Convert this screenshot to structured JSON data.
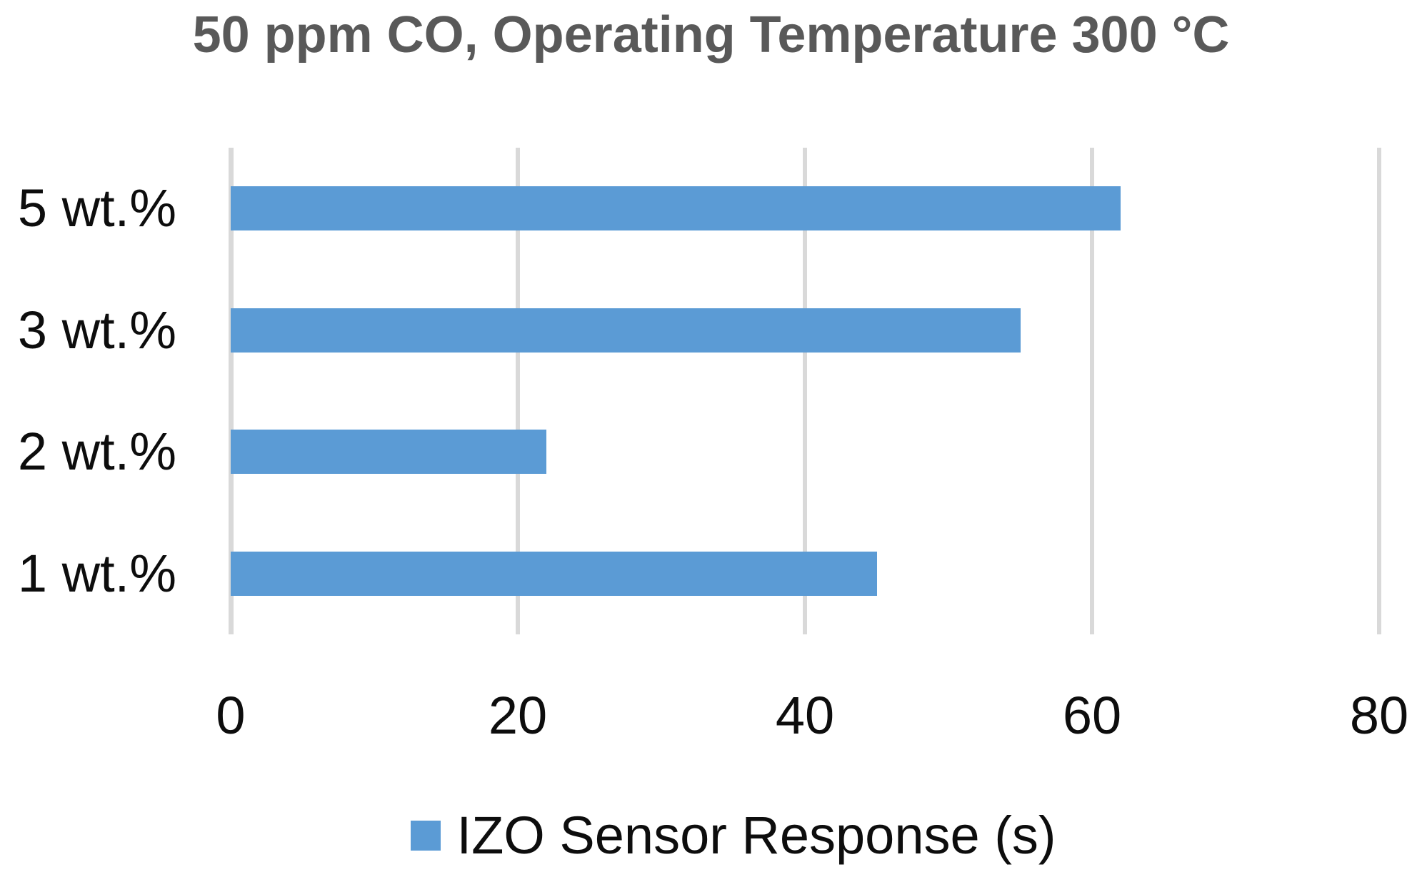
{
  "title": "50 ppm CO, Operating Temperature 300 °C",
  "legend": {
    "label": "IZO Sensor Response (s)",
    "marker_color": "#5b9bd5"
  },
  "colors": {
    "bar": "#5b9bd5",
    "gridline": "#d9d9d9",
    "axis_line": "#d9d9d9",
    "title_text": "#595959",
    "label_text": "#0d0d0d",
    "background": "#ffffff"
  },
  "chart_data": {
    "type": "bar",
    "orientation": "horizontal",
    "title": "50 ppm CO, Operating Temperature 300 °C",
    "categories": [
      "5 wt.%",
      "3 wt.%",
      "2 wt.%",
      "1 wt.%"
    ],
    "values": [
      62,
      55,
      22,
      45
    ],
    "series_name": "IZO Sensor Response (s)",
    "xlabel": "",
    "ylabel": "",
    "xlim": [
      0,
      80
    ],
    "xticks": [
      0,
      20,
      40,
      60,
      80
    ],
    "grid": true,
    "gridlines": "vertical",
    "legend_position": "bottom"
  }
}
